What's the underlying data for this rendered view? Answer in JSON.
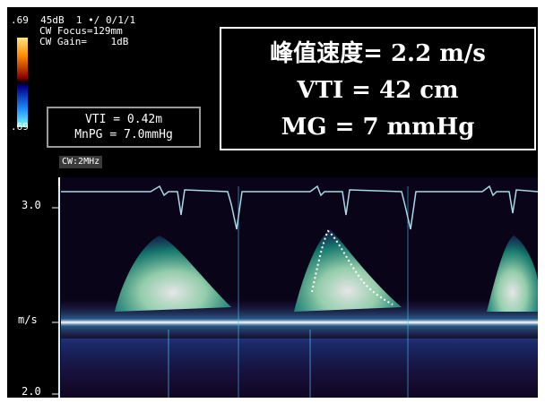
{
  "header": {
    "line1": ".69  45dB  1 •/ 0/1/1",
    "line2": "CW Focus=129mm",
    "line3": "CW Gain=    1dB",
    "colorbar_bottom": ".69"
  },
  "measurements": {
    "vti": "VTI = 0.42m",
    "mnpg": "MnPG = 7.0mmHg"
  },
  "mode_label": "CW:2MHz",
  "results": {
    "peak_velocity": "峰值速度= 2.2 m/s",
    "vti": "VTI = 42 cm",
    "mean_gradient": "MG = 7 mmHg"
  },
  "axis": {
    "top_label": "3.0",
    "mid_label": "m/s",
    "bottom_label": "2.0"
  },
  "colors": {
    "background": "#000000",
    "ecg": "#a9d8e8",
    "doppler_core": "#ffffff",
    "doppler_mid": "#7fffd0",
    "doppler_edge": "#2b6bd1"
  },
  "icons": [
    "colorbar-scale",
    "ecg-trace",
    "doppler-spectrum",
    "envelope-trace"
  ]
}
